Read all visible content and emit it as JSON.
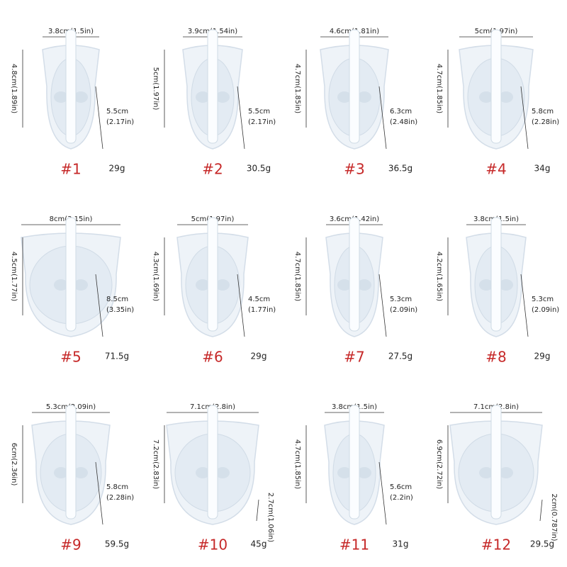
{
  "items": [
    {
      "number": "#1",
      "weight": "29g",
      "width": "3.8cm(1.5in)",
      "height": "4.8cm(1.89in)",
      "depth": [
        "5.5cm",
        "(2.17in)"
      ]
    },
    {
      "number": "#2",
      "weight": "30.5g",
      "width": "3.9cm(1.54in)",
      "height": "5cm(1.97in)",
      "depth": [
        "5.5cm",
        "(2.17in)"
      ]
    },
    {
      "number": "#3",
      "weight": "36.5g",
      "width": "4.6cm(1.81in)",
      "height": "4.7cm(1.85in)",
      "depth": [
        "6.3cm",
        "(2.48in)"
      ]
    },
    {
      "number": "#4",
      "weight": "34g",
      "width": "5cm(1.97in)",
      "height": "4.7cm(1.85in)",
      "depth": [
        "5.8cm",
        "(2.28in)"
      ]
    },
    {
      "number": "#5",
      "weight": "71.5g",
      "width": "8cm(3.15in)",
      "height": "4.5cm(1.77in)",
      "depth": [
        "8.5cm",
        "(3.35in)"
      ]
    },
    {
      "number": "#6",
      "weight": "29g",
      "width": "5cm(1.97in)",
      "height": "4.3cm(1.69in)",
      "depth": [
        "4.5cm",
        "(1.77in)"
      ]
    },
    {
      "number": "#7",
      "weight": "27.5g",
      "width": "3.6cm(1.42in)",
      "height": "4.7cm(1.85in)",
      "depth": [
        "5.3cm",
        "(2.09in)"
      ]
    },
    {
      "number": "#8",
      "weight": "29g",
      "width": "3.8cm(1.5in)",
      "height": "4.2cm(1.65in)",
      "depth": [
        "5.3cm",
        "(2.09in)"
      ]
    },
    {
      "number": "#9",
      "weight": "59.5g",
      "width": "5.3cm(2.09in)",
      "height": "6cm(2.36in)",
      "depth": [
        "5.8cm",
        "(2.28in)"
      ]
    },
    {
      "number": "#10",
      "weight": "45g",
      "width": "7.1cm(2.8in)",
      "height": "7.2cm(2.83in)",
      "depth": [
        "2.7cm(1.06in)"
      ]
    },
    {
      "number": "#11",
      "weight": "31g",
      "width": "3.8cm(1.5in)",
      "height": "4.7cm(1.85in)",
      "depth": [
        "5.6cm",
        "(2.2in)"
      ]
    },
    {
      "number": "#12",
      "weight": "29.5g",
      "width": "7.1cm(2.8in)",
      "height": "6.9cm(2.72in)",
      "depth": [
        "2cm(0.787in)"
      ]
    }
  ]
}
